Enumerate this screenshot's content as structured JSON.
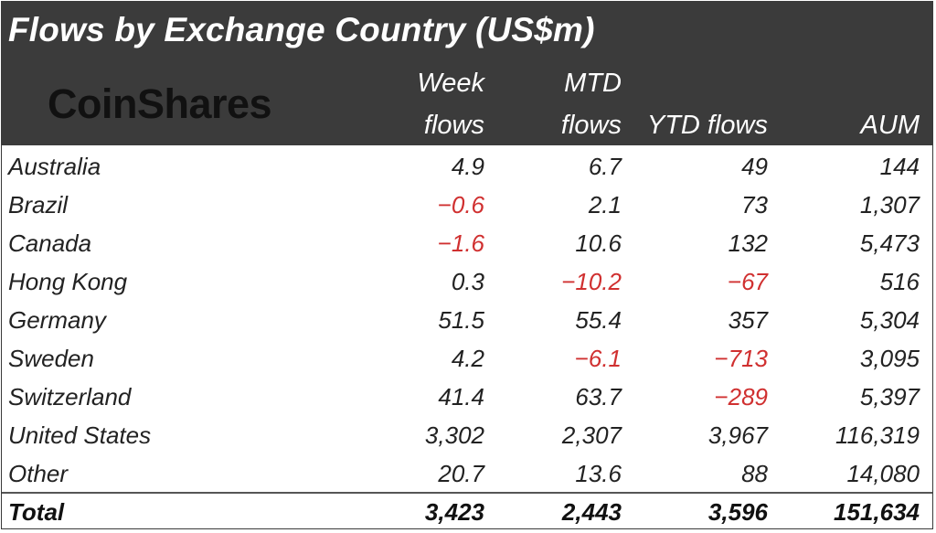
{
  "title": "Flows by Exchange Country (US$m)",
  "logo": "CoinShares",
  "columns": [
    {
      "line1": "Week",
      "line2": "flows"
    },
    {
      "line1": "MTD",
      "line2": "flows"
    },
    {
      "line1": "",
      "line2": "YTD flows"
    },
    {
      "line1": "",
      "line2": "AUM"
    }
  ],
  "rows": [
    {
      "country": "Australia",
      "week": "4.9",
      "mtd": "6.7",
      "ytd": "49",
      "aum": "144"
    },
    {
      "country": "Brazil",
      "week": "-0.6",
      "mtd": "2.1",
      "ytd": "73",
      "aum": "1,307"
    },
    {
      "country": "Canada",
      "week": "-1.6",
      "mtd": "10.6",
      "ytd": "132",
      "aum": "5,473"
    },
    {
      "country": "Hong Kong",
      "week": "0.3",
      "mtd": "-10.2",
      "ytd": "-67",
      "aum": "516"
    },
    {
      "country": "Germany",
      "week": "51.5",
      "mtd": "55.4",
      "ytd": "357",
      "aum": "5,304"
    },
    {
      "country": "Sweden",
      "week": "4.2",
      "mtd": "-6.1",
      "ytd": "-713",
      "aum": "3,095"
    },
    {
      "country": "Switzerland",
      "week": "41.4",
      "mtd": "63.7",
      "ytd": "-289",
      "aum": "5,397"
    },
    {
      "country": "United States",
      "week": "3,302",
      "mtd": "2,307",
      "ytd": "3,967",
      "aum": "116,319"
    },
    {
      "country": "Other",
      "week": "20.7",
      "mtd": "13.6",
      "ytd": "88",
      "aum": "14,080"
    }
  ],
  "total": {
    "label": "Total",
    "week": "3,423",
    "mtd": "2,443",
    "ytd": "3,596",
    "aum": "151,634"
  },
  "colors": {
    "header_bg": "#3b3b3b",
    "negative": "#d03030",
    "text": "#222222"
  },
  "chart_data": {
    "type": "table",
    "title": "Flows by Exchange Country (US$m)",
    "columns": [
      "Week flows",
      "MTD flows",
      "YTD flows",
      "AUM"
    ],
    "categories": [
      "Australia",
      "Brazil",
      "Canada",
      "Hong Kong",
      "Germany",
      "Sweden",
      "Switzerland",
      "United States",
      "Other",
      "Total"
    ],
    "series": [
      {
        "name": "Week flows",
        "values": [
          4.9,
          -0.6,
          -1.6,
          0.3,
          51.5,
          4.2,
          41.4,
          3302,
          20.7,
          3423
        ]
      },
      {
        "name": "MTD flows",
        "values": [
          6.7,
          2.1,
          10.6,
          -10.2,
          55.4,
          -6.1,
          63.7,
          2307,
          13.6,
          2443
        ]
      },
      {
        "name": "YTD flows",
        "values": [
          49,
          73,
          132,
          -67,
          357,
          -713,
          -289,
          3967,
          88,
          3596
        ]
      },
      {
        "name": "AUM",
        "values": [
          144,
          1307,
          5473,
          516,
          5304,
          3095,
          5397,
          116319,
          14080,
          151634
        ]
      }
    ]
  }
}
